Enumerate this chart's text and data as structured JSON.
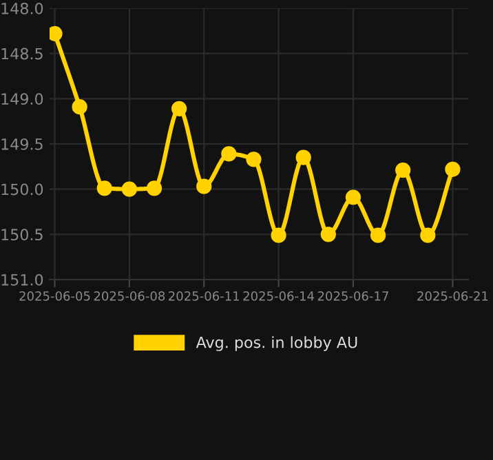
{
  "chart_data": {
    "type": "line",
    "legend": "bottom",
    "grid": true,
    "marker": "circle",
    "line_style": "solid",
    "x": [
      "2025-06-05",
      "2025-06-06",
      "2025-06-07",
      "2025-06-08",
      "2025-06-09",
      "2025-06-10",
      "2025-06-11",
      "2025-06-12",
      "2025-06-13",
      "2025-06-14",
      "2025-06-15",
      "2025-06-16",
      "2025-06-17",
      "2025-06-18",
      "2025-06-19",
      "2025-06-20",
      "2025-06-21"
    ],
    "series": [
      {
        "name": "Avg. pos. in lobby AU",
        "color": "#ffd200",
        "values": [
          148.28,
          149.09,
          149.99,
          150.0,
          149.99,
          149.11,
          149.97,
          149.61,
          149.67,
          150.51,
          149.65,
          150.5,
          150.09,
          150.51,
          149.79,
          150.51,
          149.78
        ]
      }
    ],
    "xlim": [
      "2025-06-04T19:00",
      "2025-06-21T15:00"
    ],
    "xticks": [
      {
        "value": "2025-06-05",
        "label": "2025-06-05"
      },
      {
        "value": "2025-06-08",
        "label": "2025-06-08"
      },
      {
        "value": "2025-06-11",
        "label": "2025-06-11"
      },
      {
        "value": "2025-06-14",
        "label": "2025-06-14"
      },
      {
        "value": "2025-06-17",
        "label": "2025-06-17"
      },
      {
        "value": "2025-06-21",
        "label": "2025-06-21"
      }
    ],
    "ylim": [
      151.0,
      148.0
    ],
    "yticks": [
      {
        "value": 148,
        "label": "148.0"
      },
      {
        "value": 148.5,
        "label": "148.5"
      },
      {
        "value": 149,
        "label": "149.0"
      },
      {
        "value": 149.5,
        "label": "149.5"
      },
      {
        "value": 150,
        "label": "150.0"
      },
      {
        "value": 150.5,
        "label": "150.5"
      },
      {
        "value": 151,
        "label": "151.0"
      }
    ]
  }
}
